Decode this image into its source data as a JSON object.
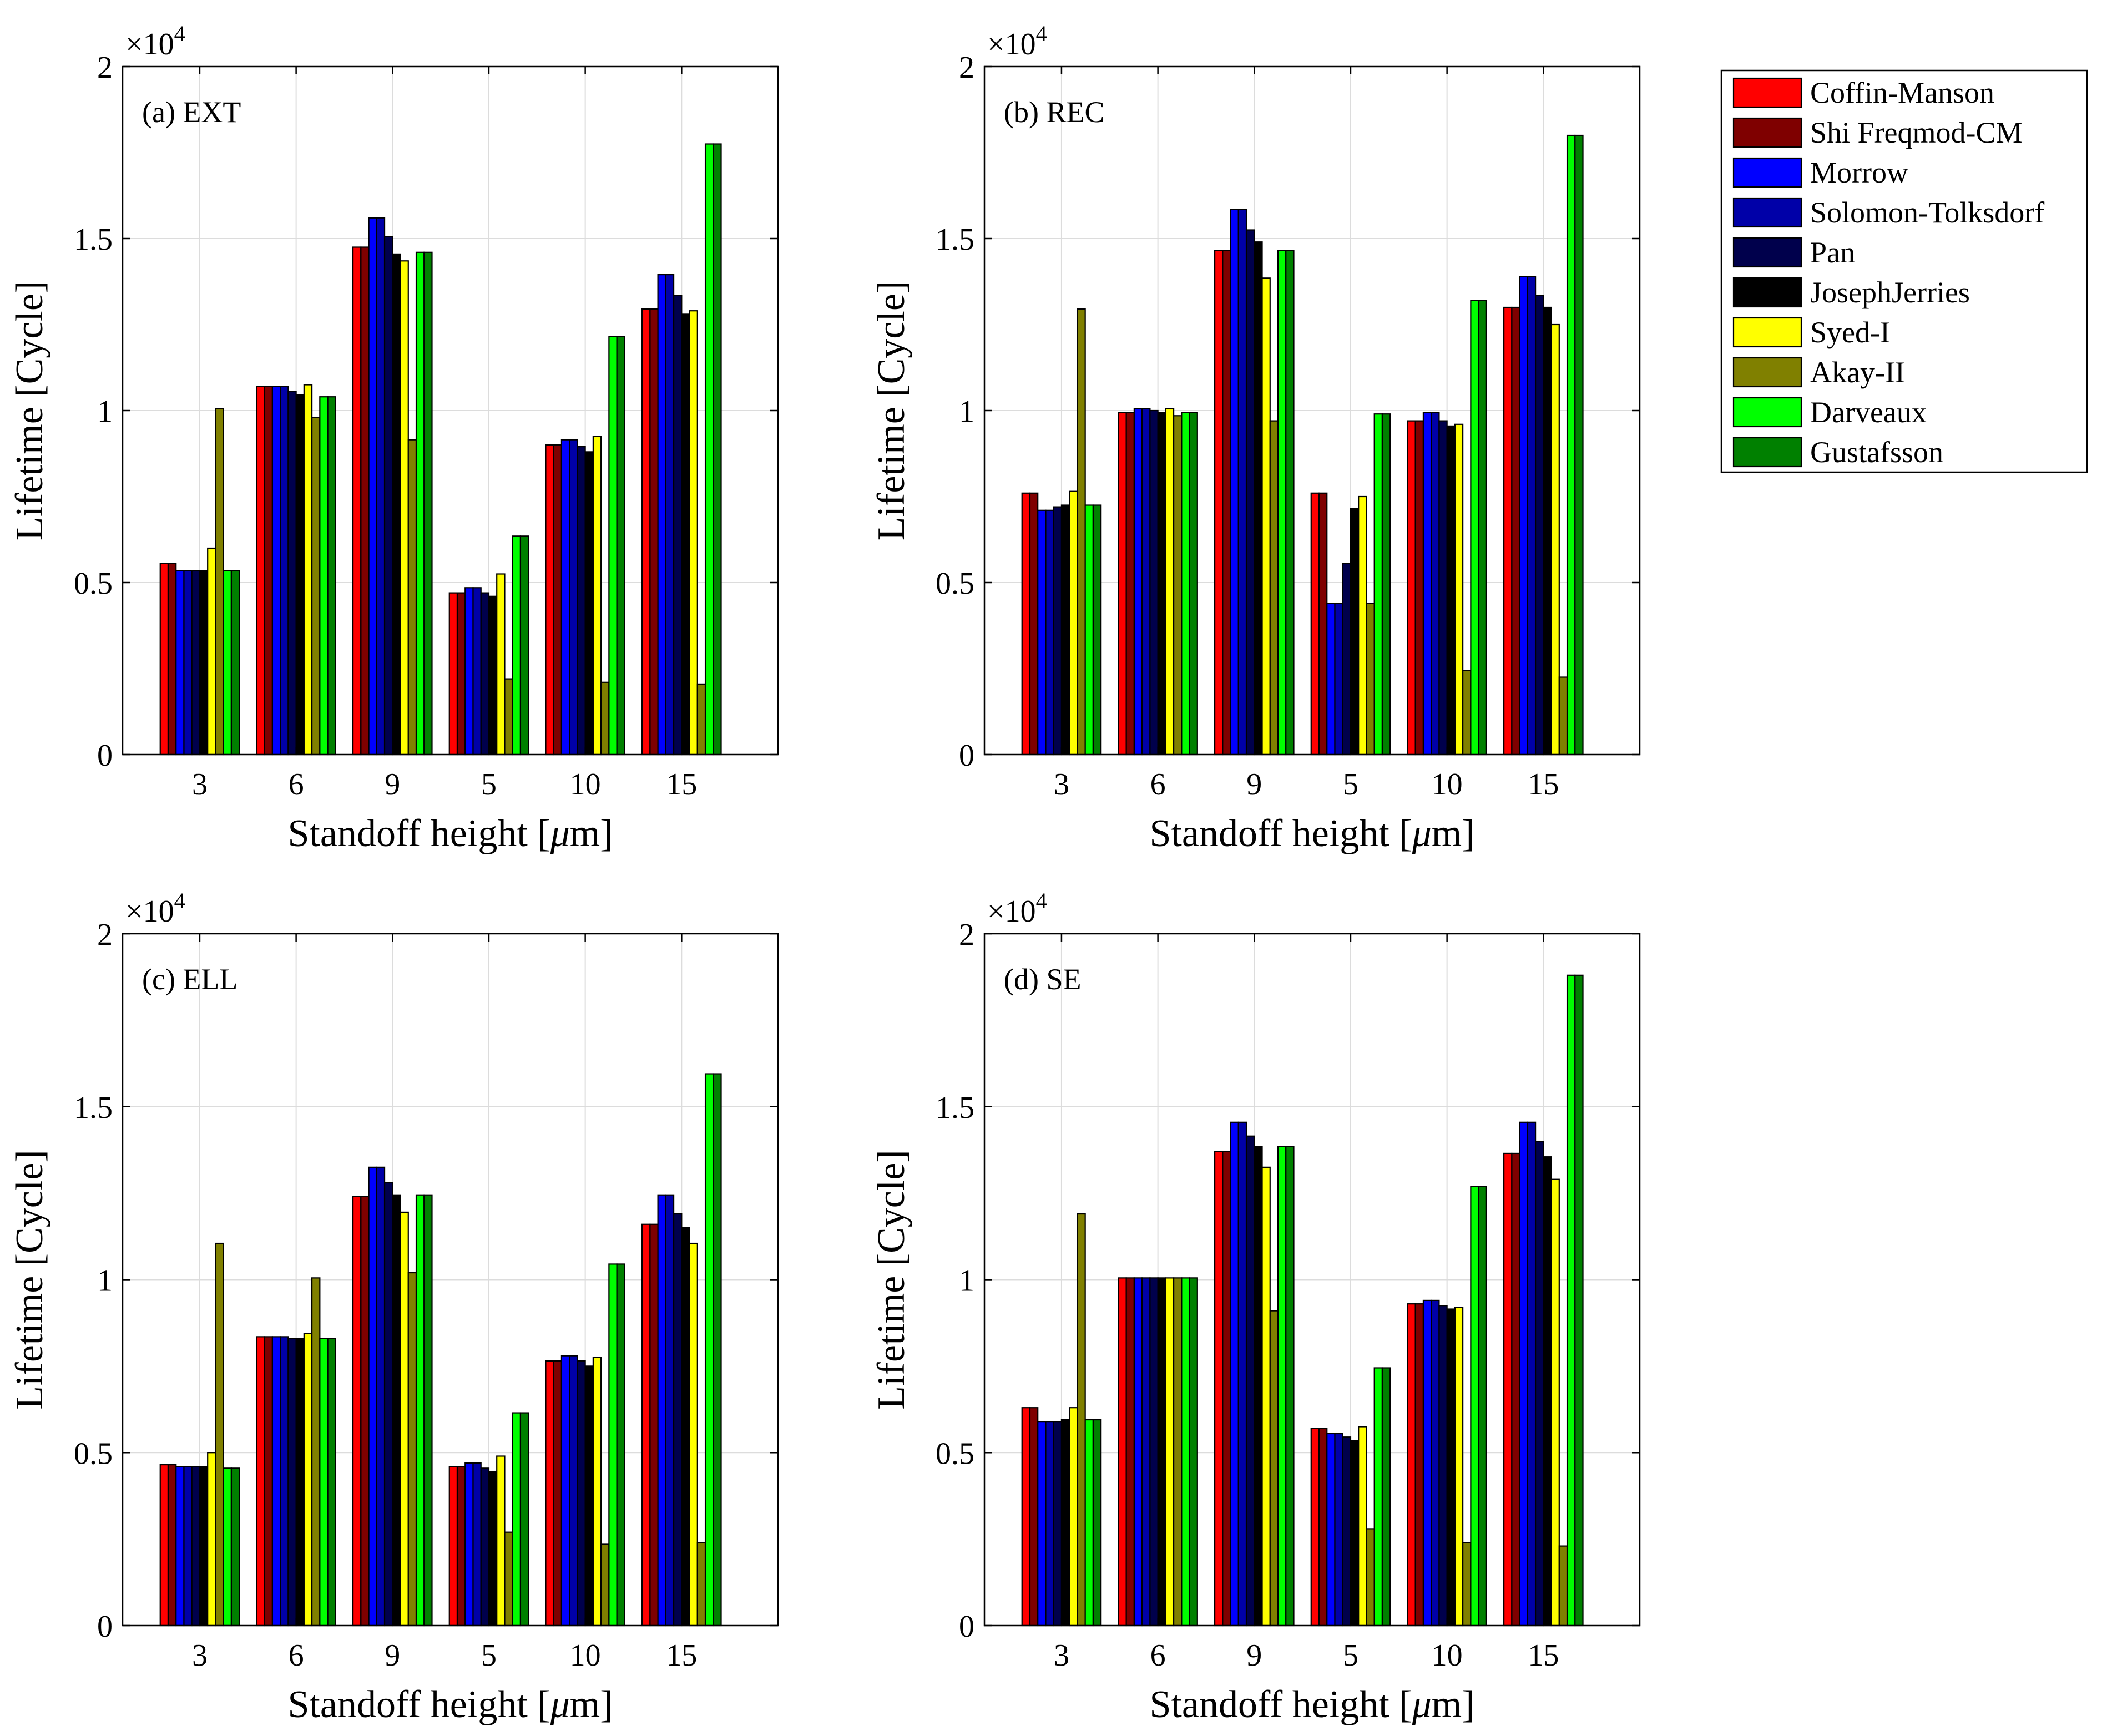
{
  "figure": {
    "legend_title": "",
    "legend_placement": "top-right, outside plots"
  },
  "legend": [
    {
      "name": "Coffin-Manson",
      "color": "#ff0000"
    },
    {
      "name": "Shi Freqmod-CM",
      "color": "#7f0000"
    },
    {
      "name": "Morrow",
      "color": "#0000ff"
    },
    {
      "name": "Solomon-Tolksdorf",
      "color": "#0000a8"
    },
    {
      "name": "Pan",
      "color": "#00004c"
    },
    {
      "name": "JosephJerries",
      "color": "#000000"
    },
    {
      "name": "Syed-I",
      "color": "#ffff00"
    },
    {
      "name": "Akay-II",
      "color": "#808000"
    },
    {
      "name": "Darveaux",
      "color": "#00ff00"
    },
    {
      "name": "Gustafsson",
      "color": "#008000"
    }
  ],
  "chart_data": [
    {
      "type": "bar",
      "panel_label": "(a) EXT",
      "xlabel": "Standoff height [μm]",
      "xlabel_parts": {
        "pre": "Standoff height [",
        "mu": "μ",
        "post": "m]"
      },
      "ylabel": "Lifetime [Cycle]",
      "y_exponent_label": {
        "base": "×10",
        "exp": "4"
      },
      "ylim": [
        0,
        2
      ],
      "yticks": [
        0,
        0.5,
        1,
        1.5,
        2
      ],
      "ytick_labels": [
        "0",
        "0.5",
        "1",
        "1.5",
        "2"
      ],
      "grid": true,
      "categories": [
        "3",
        "6",
        "9",
        "5",
        "10",
        "15"
      ],
      "series": [
        {
          "name": "Coffin-Manson",
          "values": [
            0.555,
            1.07,
            1.475,
            0.47,
            0.9,
            1.295
          ]
        },
        {
          "name": "Shi Freqmod-CM",
          "values": [
            0.555,
            1.07,
            1.475,
            0.47,
            0.9,
            1.295
          ]
        },
        {
          "name": "Morrow",
          "values": [
            0.535,
            1.07,
            1.56,
            0.485,
            0.915,
            1.395
          ]
        },
        {
          "name": "Solomon-Tolksdorf",
          "values": [
            0.535,
            1.07,
            1.56,
            0.485,
            0.915,
            1.395
          ]
        },
        {
          "name": "Pan",
          "values": [
            0.535,
            1.055,
            1.505,
            0.47,
            0.895,
            1.335
          ]
        },
        {
          "name": "JosephJerries",
          "values": [
            0.535,
            1.045,
            1.455,
            0.46,
            0.88,
            1.28
          ]
        },
        {
          "name": "Syed-I",
          "values": [
            0.6,
            1.075,
            1.435,
            0.525,
            0.925,
            1.29
          ]
        },
        {
          "name": "Akay-II",
          "values": [
            1.005,
            0.98,
            0.915,
            0.22,
            0.21,
            0.205
          ]
        },
        {
          "name": "Darveaux",
          "values": [
            0.535,
            1.04,
            1.46,
            0.635,
            1.215,
            1.775
          ]
        },
        {
          "name": "Gustafsson",
          "values": [
            0.535,
            1.04,
            1.46,
            0.635,
            1.215,
            1.775
          ]
        }
      ]
    },
    {
      "type": "bar",
      "panel_label": "(b) REC",
      "xlabel": "Standoff height [μm]",
      "xlabel_parts": {
        "pre": "Standoff height [",
        "mu": "μ",
        "post": "m]"
      },
      "ylabel": "Lifetime [Cycle]",
      "y_exponent_label": {
        "base": "×10",
        "exp": "4"
      },
      "ylim": [
        0,
        2
      ],
      "yticks": [
        0,
        0.5,
        1,
        1.5,
        2
      ],
      "ytick_labels": [
        "0",
        "0.5",
        "1",
        "1.5",
        "2"
      ],
      "grid": true,
      "categories": [
        "3",
        "6",
        "9",
        "5",
        "10",
        "15"
      ],
      "series": [
        {
          "name": "Coffin-Manson",
          "values": [
            0.76,
            0.995,
            1.465,
            0.76,
            0.97,
            1.3
          ]
        },
        {
          "name": "Shi Freqmod-CM",
          "values": [
            0.76,
            0.995,
            1.465,
            0.76,
            0.97,
            1.3
          ]
        },
        {
          "name": "Morrow",
          "values": [
            0.71,
            1.005,
            1.585,
            0.44,
            0.995,
            1.39
          ]
        },
        {
          "name": "Solomon-Tolksdorf",
          "values": [
            0.71,
            1.005,
            1.585,
            0.44,
            0.995,
            1.39
          ]
        },
        {
          "name": "Pan",
          "values": [
            0.72,
            1.0,
            1.525,
            0.555,
            0.97,
            1.335
          ]
        },
        {
          "name": "JosephJerries",
          "values": [
            0.725,
            0.995,
            1.49,
            0.715,
            0.955,
            1.3
          ]
        },
        {
          "name": "Syed-I",
          "values": [
            0.765,
            1.005,
            1.385,
            0.75,
            0.96,
            1.25
          ]
        },
        {
          "name": "Akay-II",
          "values": [
            1.295,
            0.985,
            0.97,
            0.44,
            0.245,
            0.225
          ]
        },
        {
          "name": "Darveaux",
          "values": [
            0.725,
            0.995,
            1.465,
            0.99,
            1.32,
            1.8
          ]
        },
        {
          "name": "Gustafsson",
          "values": [
            0.725,
            0.995,
            1.465,
            0.99,
            1.32,
            1.8
          ]
        }
      ]
    },
    {
      "type": "bar",
      "panel_label": "(c) ELL",
      "xlabel": "Standoff height [μm]",
      "xlabel_parts": {
        "pre": "Standoff height [",
        "mu": "μ",
        "post": "m]"
      },
      "ylabel": "Lifetime [Cycle]",
      "y_exponent_label": {
        "base": "×10",
        "exp": "4"
      },
      "ylim": [
        0,
        2
      ],
      "yticks": [
        0,
        0.5,
        1,
        1.5,
        2
      ],
      "ytick_labels": [
        "0",
        "0.5",
        "1",
        "1.5",
        "2"
      ],
      "grid": true,
      "categories": [
        "3",
        "6",
        "9",
        "5",
        "10",
        "15"
      ],
      "series": [
        {
          "name": "Coffin-Manson",
          "values": [
            0.465,
            0.835,
            1.24,
            0.46,
            0.765,
            1.16
          ]
        },
        {
          "name": "Shi Freqmod-CM",
          "values": [
            0.465,
            0.835,
            1.24,
            0.46,
            0.765,
            1.16
          ]
        },
        {
          "name": "Morrow",
          "values": [
            0.46,
            0.835,
            1.325,
            0.47,
            0.78,
            1.245
          ]
        },
        {
          "name": "Solomon-Tolksdorf",
          "values": [
            0.46,
            0.835,
            1.325,
            0.47,
            0.78,
            1.245
          ]
        },
        {
          "name": "Pan",
          "values": [
            0.46,
            0.83,
            1.28,
            0.455,
            0.765,
            1.19
          ]
        },
        {
          "name": "JosephJerries",
          "values": [
            0.46,
            0.83,
            1.245,
            0.445,
            0.75,
            1.15
          ]
        },
        {
          "name": "Syed-I",
          "values": [
            0.5,
            0.845,
            1.195,
            0.49,
            0.775,
            1.105
          ]
        },
        {
          "name": "Akay-II",
          "values": [
            1.105,
            1.005,
            1.02,
            0.27,
            0.235,
            0.24
          ]
        },
        {
          "name": "Darveaux",
          "values": [
            0.455,
            0.83,
            1.245,
            0.615,
            1.045,
            1.595
          ]
        },
        {
          "name": "Gustafsson",
          "values": [
            0.455,
            0.83,
            1.245,
            0.615,
            1.045,
            1.595
          ]
        }
      ]
    },
    {
      "type": "bar",
      "panel_label": "(d) SE",
      "xlabel": "Standoff height [μm]",
      "xlabel_parts": {
        "pre": "Standoff height [",
        "mu": "μ",
        "post": "m]"
      },
      "ylabel": "Lifetime [Cycle]",
      "y_exponent_label": {
        "base": "×10",
        "exp": "4"
      },
      "ylim": [
        0,
        2
      ],
      "yticks": [
        0,
        0.5,
        1,
        1.5,
        2
      ],
      "ytick_labels": [
        "0",
        "0.5",
        "1",
        "1.5",
        "2"
      ],
      "grid": true,
      "categories": [
        "3",
        "6",
        "9",
        "5",
        "10",
        "15"
      ],
      "series": [
        {
          "name": "Coffin-Manson",
          "values": [
            0.63,
            1.005,
            1.37,
            0.57,
            0.93,
            1.365
          ]
        },
        {
          "name": "Shi Freqmod-CM",
          "values": [
            0.63,
            1.005,
            1.37,
            0.57,
            0.93,
            1.365
          ]
        },
        {
          "name": "Morrow",
          "values": [
            0.59,
            1.005,
            1.455,
            0.555,
            0.94,
            1.455
          ]
        },
        {
          "name": "Solomon-Tolksdorf",
          "values": [
            0.59,
            1.005,
            1.455,
            0.555,
            0.94,
            1.455
          ]
        },
        {
          "name": "Pan",
          "values": [
            0.59,
            1.005,
            1.415,
            0.545,
            0.925,
            1.4
          ]
        },
        {
          "name": "JosephJerries",
          "values": [
            0.595,
            1.005,
            1.385,
            0.535,
            0.915,
            1.355
          ]
        },
        {
          "name": "Syed-I",
          "values": [
            0.63,
            1.005,
            1.325,
            0.575,
            0.92,
            1.29
          ]
        },
        {
          "name": "Akay-II",
          "values": [
            1.19,
            1.005,
            0.91,
            0.28,
            0.24,
            0.23
          ]
        },
        {
          "name": "Darveaux",
          "values": [
            0.595,
            1.005,
            1.385,
            0.745,
            1.27,
            1.88
          ]
        },
        {
          "name": "Gustafsson",
          "values": [
            0.595,
            1.005,
            1.385,
            0.745,
            1.27,
            1.88
          ]
        }
      ]
    }
  ]
}
